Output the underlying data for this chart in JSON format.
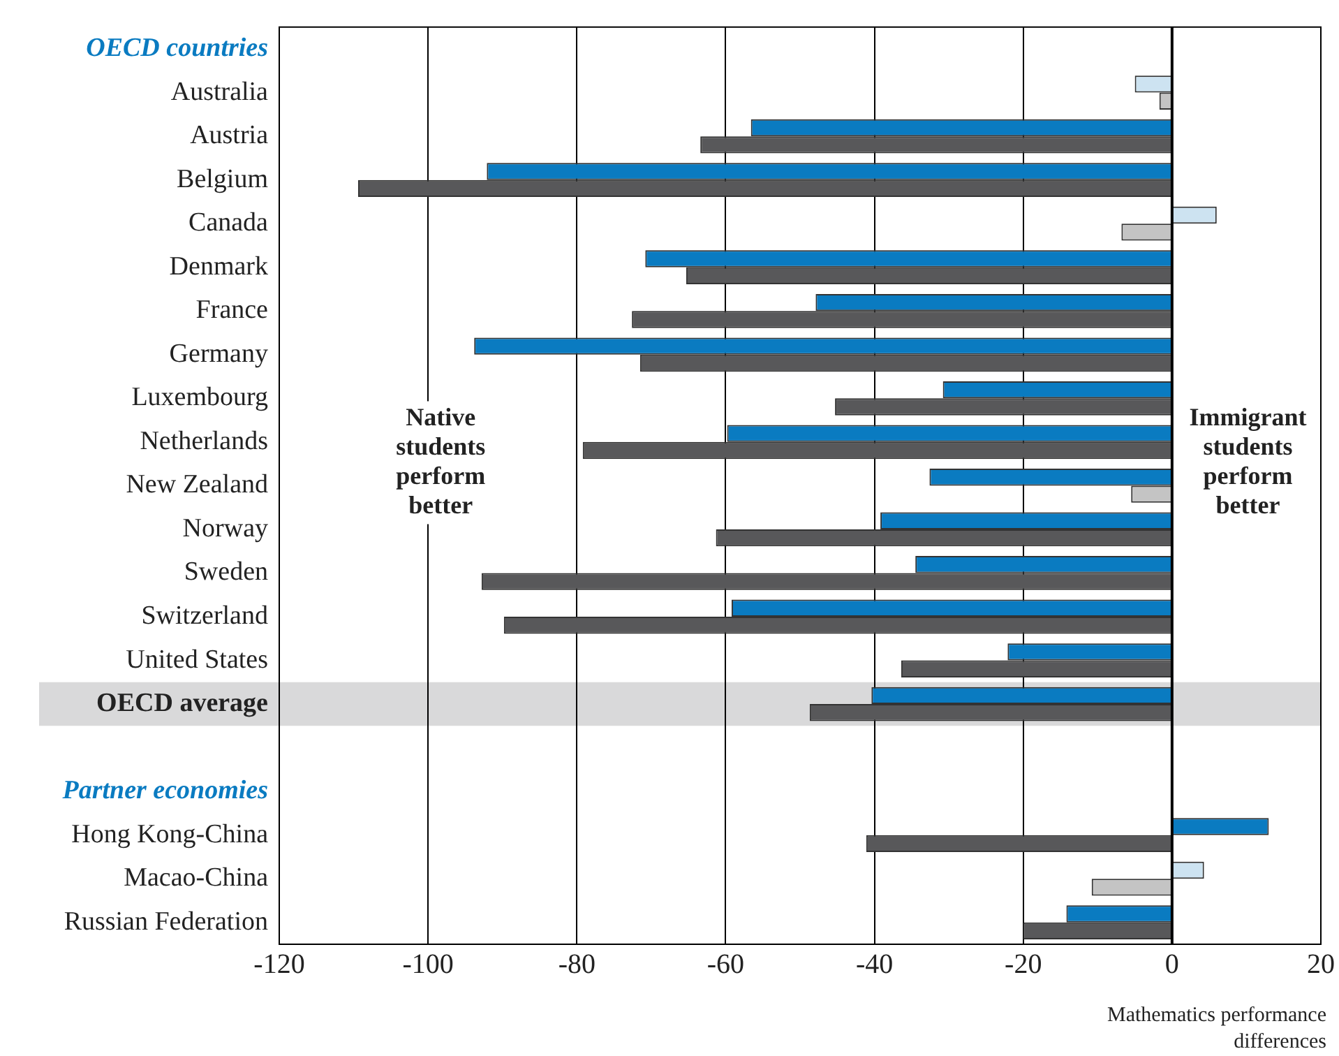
{
  "chart_data": {
    "type": "bar",
    "orientation": "horizontal",
    "xlabel": "Mathematics performance differences",
    "categories": [
      "OECD countries",
      "Australia",
      "Austria",
      "Belgium",
      "Canada",
      "Denmark",
      "France",
      "Germany",
      "Luxembourg",
      "Netherlands",
      "New Zealand",
      "Norway",
      "Sweden",
      "Switzerland",
      "United States",
      "OECD average",
      null,
      "Partner economies",
      "Hong Kong-China",
      "Macao-China",
      "Russian Federation"
    ],
    "series": [
      {
        "values": [
          null,
          -5,
          -56.6,
          -92.1,
          6,
          -70.8,
          -47.9,
          -93.8,
          -30.8,
          -59.8,
          -32.6,
          -39.2,
          -34.5,
          -59.2,
          -22.1,
          -40.4,
          null,
          null,
          13,
          4.3,
          -14.2
        ],
        "colors": [
          "#0a7bc1",
          "#cde3f1",
          "#0a7bc1",
          "#0a7bc1",
          "#cde3f1",
          "#0a7bc1",
          "#0a7bc1",
          "#0a7bc1",
          "#0a7bc1",
          "#0a7bc1",
          "#0a7bc1",
          "#0a7bc1",
          "#0a7bc1",
          "#0a7bc1",
          "#0a7bc1",
          "#0a7bc1",
          "#0a7bc1",
          "#0a7bc1",
          "#0a7bc1",
          "#cde3f1",
          "#0a7bc1"
        ]
      },
      {
        "values": [
          null,
          -1.7,
          -63.4,
          -109.4,
          -6.8,
          -65.3,
          -72.6,
          -71.5,
          -45.3,
          -79.2,
          -5.5,
          -61.3,
          -92.8,
          -89.8,
          -36.4,
          -48.7,
          null,
          null,
          -41.1,
          -10.8,
          -20
        ],
        "colors": [
          "#58585a",
          "#c4c4c4",
          "#58585a",
          "#58585a",
          "#c4c4c4",
          "#58585a",
          "#58585a",
          "#58585a",
          "#58585a",
          "#58585a",
          "#c4c4c4",
          "#58585a",
          "#58585a",
          "#58585a",
          "#58585a",
          "#58585a",
          "#58585a",
          "#58585a",
          "#58585a",
          "#c4c4c4",
          "#58585a"
        ]
      }
    ],
    "xlim": [
      -120,
      20
    ],
    "xticks": [
      -120,
      -100,
      -80,
      -60,
      -40,
      -20,
      0,
      20
    ],
    "grid": "x",
    "legend": false,
    "ref_lines": [
      {
        "axis": "x",
        "value": 0,
        "color": "#000000"
      }
    ],
    "bands": [
      {
        "axis": "y",
        "from": "OECD average",
        "to": "OECD average",
        "color": "#d9d9da"
      }
    ],
    "annotations": [
      "Native students perform better",
      "Immigrant students perform better"
    ]
  }
}
